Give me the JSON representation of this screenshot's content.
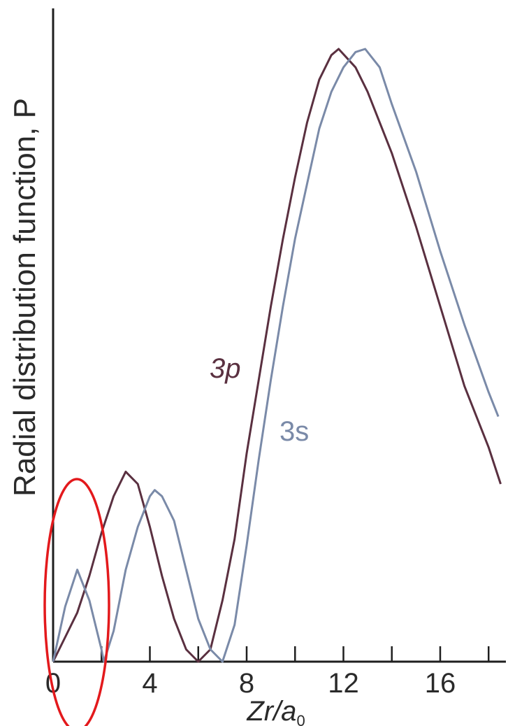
{
  "chart_data": {
    "type": "line",
    "xlabel_main": "Zr/a",
    "xlabel_sub": "0",
    "ylabel": "Radial distribution function, P",
    "xlim": [
      0,
      18.6
    ],
    "ylim": [
      0,
      1
    ],
    "x_ticks": [
      0,
      2,
      4,
      6,
      8,
      10,
      12,
      14,
      16,
      18
    ],
    "x_tick_labels": [
      "0",
      "4",
      "8",
      "12",
      "16"
    ],
    "grid": false,
    "legend": "inline",
    "annotation": "red ellipse around first 3s peak near x = 1",
    "series": [
      {
        "name": "3p",
        "color": "#5a3040",
        "points": [
          [
            0,
            0
          ],
          [
            0.5,
            0.04
          ],
          [
            1,
            0.08
          ],
          [
            1.5,
            0.14
          ],
          [
            2,
            0.21
          ],
          [
            2.5,
            0.27
          ],
          [
            3,
            0.31
          ],
          [
            3.5,
            0.29
          ],
          [
            4,
            0.22
          ],
          [
            4.5,
            0.14
          ],
          [
            5,
            0.07
          ],
          [
            5.5,
            0.02
          ],
          [
            6,
            0
          ],
          [
            6.5,
            0.02
          ],
          [
            7,
            0.1
          ],
          [
            7.5,
            0.2
          ],
          [
            8,
            0.34
          ],
          [
            8.5,
            0.46
          ],
          [
            9,
            0.58
          ],
          [
            9.5,
            0.69
          ],
          [
            10,
            0.79
          ],
          [
            10.5,
            0.88
          ],
          [
            11,
            0.95
          ],
          [
            11.5,
            0.99
          ],
          [
            11.8,
            1.0
          ],
          [
            12.5,
            0.97
          ],
          [
            13,
            0.93
          ],
          [
            14,
            0.83
          ],
          [
            15,
            0.71
          ],
          [
            16,
            0.58
          ],
          [
            17,
            0.45
          ],
          [
            18,
            0.35
          ],
          [
            18.5,
            0.29
          ]
        ]
      },
      {
        "name": "3s",
        "color": "#7a8aa8",
        "points": [
          [
            0,
            0
          ],
          [
            0.5,
            0.09
          ],
          [
            1,
            0.15
          ],
          [
            1.5,
            0.1
          ],
          [
            2,
            0.02
          ],
          [
            2.1,
            0
          ],
          [
            2.5,
            0.05
          ],
          [
            3,
            0.15
          ],
          [
            3.5,
            0.22
          ],
          [
            4,
            0.27
          ],
          [
            4.2,
            0.28
          ],
          [
            4.5,
            0.27
          ],
          [
            5,
            0.23
          ],
          [
            5.5,
            0.15
          ],
          [
            6,
            0.07
          ],
          [
            6.5,
            0.02
          ],
          [
            7,
            0
          ],
          [
            7.5,
            0.06
          ],
          [
            8,
            0.19
          ],
          [
            8.5,
            0.33
          ],
          [
            9,
            0.46
          ],
          [
            9.5,
            0.58
          ],
          [
            10,
            0.69
          ],
          [
            10.5,
            0.78
          ],
          [
            11,
            0.87
          ],
          [
            11.5,
            0.93
          ],
          [
            12,
            0.97
          ],
          [
            12.5,
            0.995
          ],
          [
            12.9,
            1.0
          ],
          [
            13.5,
            0.97
          ],
          [
            14,
            0.91
          ],
          [
            15,
            0.8
          ],
          [
            16,
            0.67
          ],
          [
            17,
            0.55
          ],
          [
            18,
            0.44
          ],
          [
            18.4,
            0.4
          ]
        ]
      }
    ]
  }
}
